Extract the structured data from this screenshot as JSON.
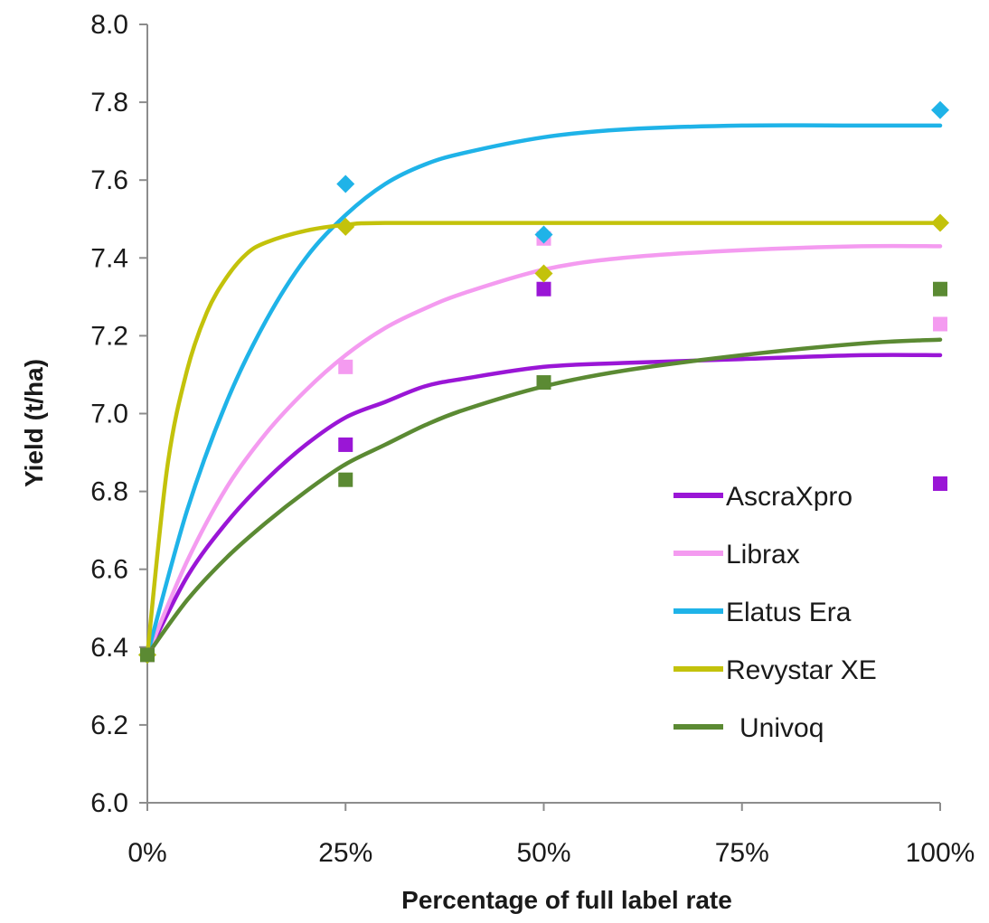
{
  "chart_data": {
    "type": "scatter",
    "title": "",
    "xlabel": "Percentage of full label rate",
    "ylabel": "Yield (t/ha)",
    "xlim": [
      0,
      100
    ],
    "ylim": [
      6.0,
      8.0
    ],
    "x_ticks": [
      0,
      25,
      50,
      75,
      100
    ],
    "x_tick_labels": [
      "0%",
      "25%",
      "50%",
      "75%",
      "100%"
    ],
    "y_ticks": [
      6.0,
      6.2,
      6.4,
      6.6,
      6.8,
      7.0,
      7.2,
      7.4,
      7.6,
      7.8,
      8.0
    ],
    "y_tick_labels": [
      "6.0",
      "6.2",
      "6.4",
      "6.6",
      "6.8",
      "7.0",
      "7.2",
      "7.4",
      "7.6",
      "7.8",
      "8.0"
    ],
    "grid": false,
    "legend_position": "bottom-right",
    "series": [
      {
        "name": "AscraXpro",
        "color": "#9a16d6",
        "marker": "square",
        "points": [
          [
            0,
            6.38
          ],
          [
            25,
            6.92
          ],
          [
            50,
            7.32
          ],
          [
            100,
            6.82
          ]
        ],
        "curve": [
          [
            0,
            6.38
          ],
          [
            5,
            6.58
          ],
          [
            10,
            6.72
          ],
          [
            15,
            6.83
          ],
          [
            20,
            6.92
          ],
          [
            25,
            6.99
          ],
          [
            30,
            7.03
          ],
          [
            35,
            7.07
          ],
          [
            40,
            7.09
          ],
          [
            50,
            7.12
          ],
          [
            60,
            7.13
          ],
          [
            75,
            7.14
          ],
          [
            90,
            7.15
          ],
          [
            100,
            7.15
          ]
        ]
      },
      {
        "name": "Librax",
        "color": "#f49bf0",
        "marker": "square",
        "points": [
          [
            0,
            6.38
          ],
          [
            25,
            7.12
          ],
          [
            50,
            7.45
          ],
          [
            100,
            7.23
          ]
        ],
        "curve": [
          [
            0,
            6.38
          ],
          [
            5,
            6.62
          ],
          [
            10,
            6.81
          ],
          [
            15,
            6.95
          ],
          [
            20,
            7.06
          ],
          [
            25,
            7.15
          ],
          [
            30,
            7.22
          ],
          [
            35,
            7.27
          ],
          [
            40,
            7.31
          ],
          [
            50,
            7.37
          ],
          [
            60,
            7.4
          ],
          [
            75,
            7.42
          ],
          [
            90,
            7.43
          ],
          [
            100,
            7.43
          ]
        ]
      },
      {
        "name": "Elatus Era",
        "color": "#1fb3e8",
        "marker": "diamond",
        "points": [
          [
            0,
            6.38
          ],
          [
            25,
            7.59
          ],
          [
            50,
            7.46
          ],
          [
            100,
            7.78
          ]
        ],
        "curve": [
          [
            0,
            6.38
          ],
          [
            5,
            6.75
          ],
          [
            10,
            7.03
          ],
          [
            15,
            7.24
          ],
          [
            20,
            7.4
          ],
          [
            25,
            7.51
          ],
          [
            30,
            7.59
          ],
          [
            35,
            7.64
          ],
          [
            40,
            7.67
          ],
          [
            50,
            7.71
          ],
          [
            60,
            7.73
          ],
          [
            75,
            7.74
          ],
          [
            90,
            7.74
          ],
          [
            100,
            7.74
          ]
        ]
      },
      {
        "name": "Revystar XE",
        "color": "#c3c20b",
        "marker": "diamond",
        "points": [
          [
            0,
            6.38
          ],
          [
            25,
            7.48
          ],
          [
            50,
            7.36
          ],
          [
            100,
            7.49
          ]
        ],
        "curve": [
          [
            0,
            6.38
          ],
          [
            2.5,
            6.86
          ],
          [
            5,
            7.11
          ],
          [
            7.5,
            7.26
          ],
          [
            10,
            7.35
          ],
          [
            12.5,
            7.41
          ],
          [
            15,
            7.44
          ],
          [
            20,
            7.47
          ],
          [
            25,
            7.485
          ],
          [
            30,
            7.49
          ],
          [
            50,
            7.49
          ],
          [
            75,
            7.49
          ],
          [
            100,
            7.49
          ]
        ]
      },
      {
        "name": "Univoq",
        "color": "#5b8a33",
        "marker": "square",
        "points": [
          [
            0,
            6.38
          ],
          [
            25,
            6.83
          ],
          [
            50,
            7.08
          ],
          [
            100,
            7.32
          ]
        ],
        "curve": [
          [
            0,
            6.38
          ],
          [
            5,
            6.52
          ],
          [
            10,
            6.63
          ],
          [
            15,
            6.72
          ],
          [
            20,
            6.8
          ],
          [
            25,
            6.87
          ],
          [
            30,
            6.92
          ],
          [
            35,
            6.97
          ],
          [
            40,
            7.01
          ],
          [
            50,
            7.07
          ],
          [
            60,
            7.11
          ],
          [
            75,
            7.15
          ],
          [
            90,
            7.18
          ],
          [
            100,
            7.19
          ]
        ]
      }
    ]
  }
}
